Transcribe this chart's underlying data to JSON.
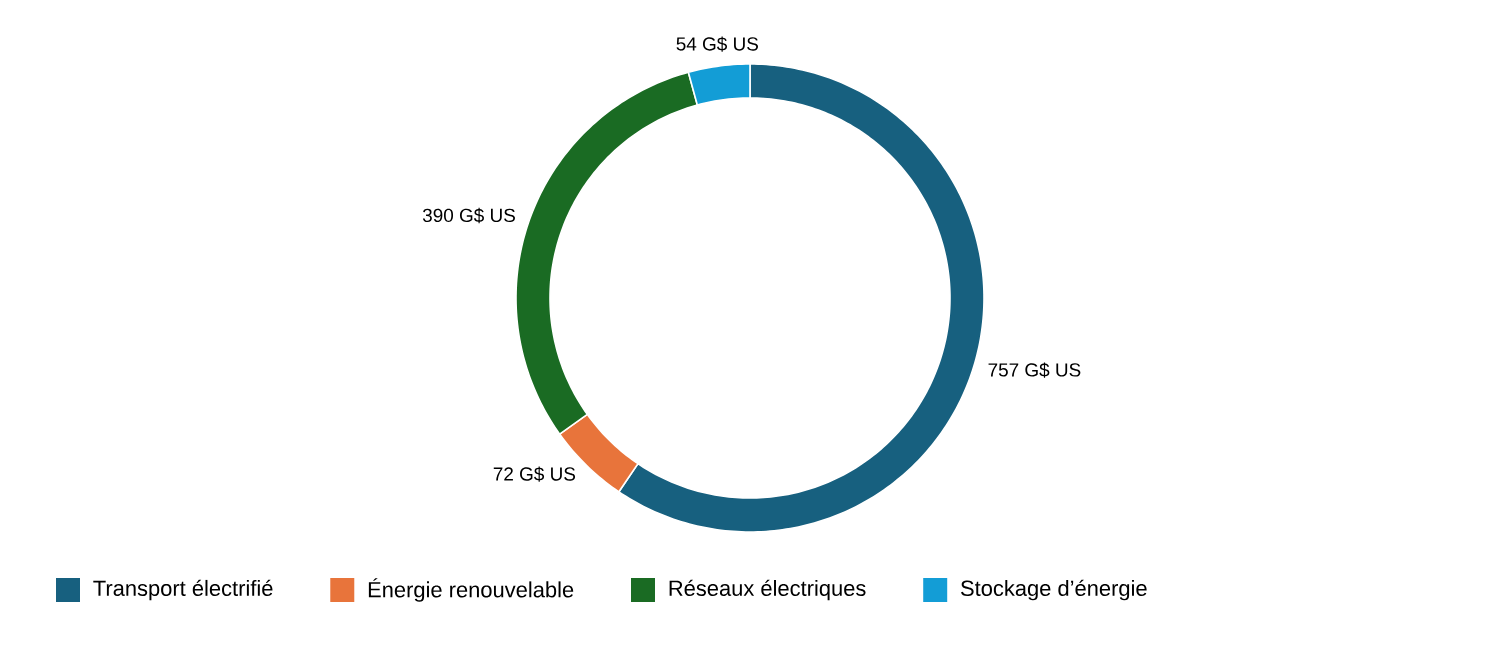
{
  "chart_data": {
    "type": "donut",
    "categories": [
      "Transport électrifié",
      "Énergie renouvelable",
      "Réseaux électriques",
      "Stockage d’énergie"
    ],
    "values": [
      757,
      72,
      390,
      54
    ],
    "colors": [
      "#17607f",
      "#e8743b",
      "#1a6b23",
      "#139dd6"
    ],
    "value_labels": [
      "757 G$ US",
      "72 G$ US",
      "390 G$ US",
      "54 G$ US"
    ],
    "legend": "bottom"
  }
}
